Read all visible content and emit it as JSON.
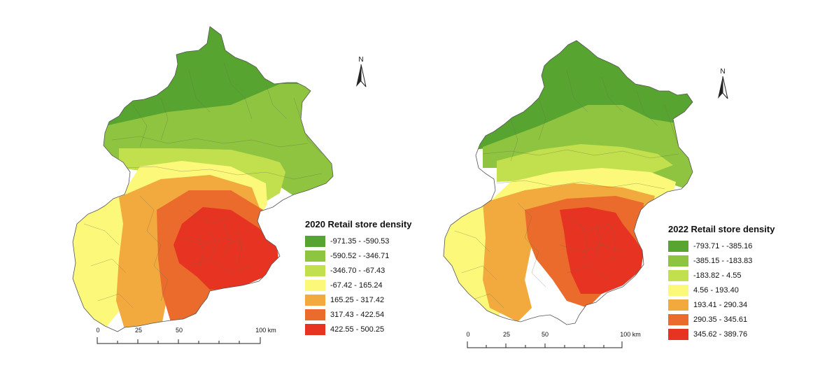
{
  "maps": [
    {
      "legend_title": "2020 Retail store density",
      "classes": [
        {
          "label": "-971.35 - -590.53",
          "color": "#57a431"
        },
        {
          "label": "-590.52 - -346.71",
          "color": "#8ec440"
        },
        {
          "label": "-346.70 - -67.43",
          "color": "#c2e04e"
        },
        {
          "label": "-67.42 - 165.24",
          "color": "#fbf87a"
        },
        {
          "label": "165.25 - 317.42",
          "color": "#f2a93e"
        },
        {
          "label": "317.43 - 422.54",
          "color": "#ea6b2c"
        },
        {
          "label": "422.55 - 500.25",
          "color": "#e63322"
        }
      ],
      "north_label": "N",
      "scale": {
        "ticks": [
          "0",
          "25",
          "50",
          "100 km"
        ]
      }
    },
    {
      "legend_title": "2022 Retail store density",
      "classes": [
        {
          "label": "-793.71 - -385.16",
          "color": "#57a431"
        },
        {
          "label": "-385.15 - -183.83",
          "color": "#8ec440"
        },
        {
          "label": "-183.82 - 4.55",
          "color": "#c2e04e"
        },
        {
          "label": "4.56 - 193.40",
          "color": "#fbf87a"
        },
        {
          "label": "193.41 - 290.34",
          "color": "#f2a93e"
        },
        {
          "label": "290.35 - 345.61",
          "color": "#ea6b2c"
        },
        {
          "label": "345.62 - 389.76",
          "color": "#e63322"
        }
      ],
      "north_label": "N",
      "scale": {
        "ticks": [
          "0",
          "25",
          "50",
          "100 km"
        ]
      }
    }
  ]
}
